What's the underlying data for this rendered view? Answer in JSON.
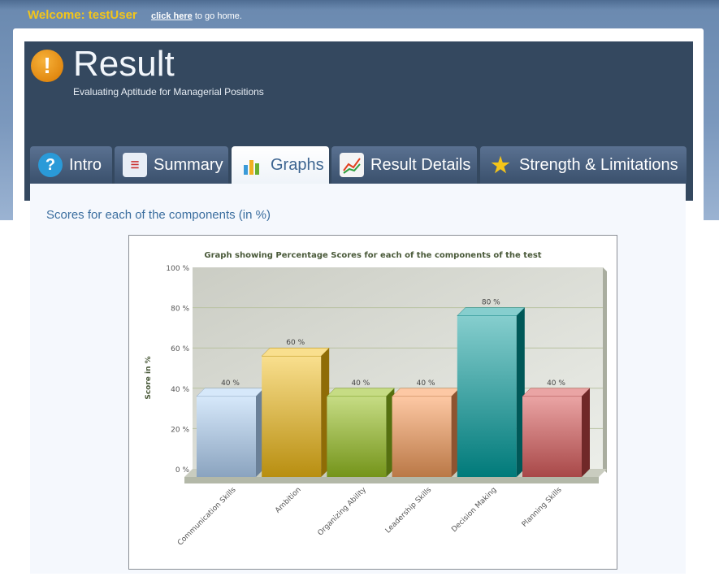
{
  "top": {
    "welcome": "Welcome: testUser",
    "link": "click here",
    "link_suffix": " to go home."
  },
  "header": {
    "title": "Result",
    "subtitle": "Evaluating Aptitude for Managerial Positions"
  },
  "tabs": [
    {
      "label": "Intro",
      "icon": "help-icon"
    },
    {
      "label": "Summary",
      "icon": "list-icon"
    },
    {
      "label": "Graphs",
      "icon": "bar-chart-icon",
      "active": true
    },
    {
      "label": "Result Details",
      "icon": "line-chart-icon"
    },
    {
      "label": "Strength & Limitations",
      "icon": "star-medal-icon"
    }
  ],
  "section_heading": "Scores for each of the components (in %)",
  "chart_data": {
    "type": "bar",
    "title": "Graph showing Percentage Scores for each of the components of the test",
    "xlabel": "",
    "ylabel": "Score in %",
    "ylim": [
      0,
      100
    ],
    "yticks": [
      "0 %",
      "20 %",
      "40 %",
      "60 %",
      "80 %",
      "100 %"
    ],
    "categories": [
      "Communication Skills",
      "Ambition",
      "Organizing Ability",
      "Leadership Skills",
      "Decision Making",
      "Planning Skills"
    ],
    "values": [
      40,
      60,
      40,
      40,
      80,
      40
    ],
    "data_labels": [
      "40 %",
      "60 %",
      "40 %",
      "40 %",
      "80 %",
      "40 %"
    ],
    "colors": [
      [
        "#d6e8fa",
        "#8aa3bf",
        "#6a8098"
      ],
      [
        "#f9df8e",
        "#b88e10",
        "#8f6c06"
      ],
      [
        "#c6dc84",
        "#74941a",
        "#557010"
      ],
      [
        "#fdc8a4",
        "#ba7846",
        "#8e5430"
      ],
      [
        "#86cece",
        "#007a7a",
        "#005858"
      ],
      [
        "#eaa4a4",
        "#a84848",
        "#702828"
      ]
    ],
    "grid": true
  }
}
